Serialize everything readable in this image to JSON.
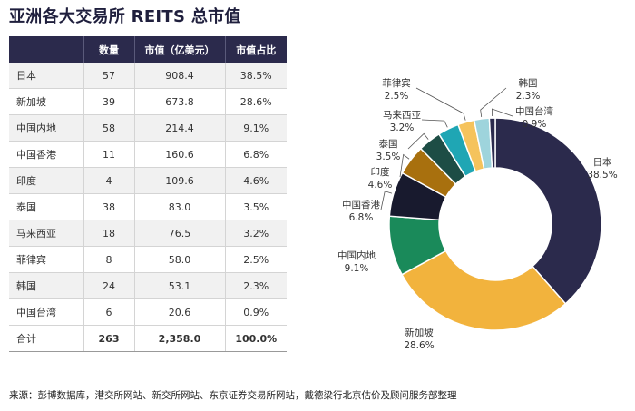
{
  "title": "亚洲各大交易所 REITS 总市值",
  "table": {
    "headers": [
      "",
      "数量",
      "市值（亿美元）",
      "市值占比"
    ],
    "rows": [
      {
        "name": "日本",
        "count": "57",
        "value": "908.4",
        "share": "38.5%"
      },
      {
        "name": "新加坡",
        "count": "39",
        "value": "673.8",
        "share": "28.6%"
      },
      {
        "name": "中国内地",
        "count": "58",
        "value": "214.4",
        "share": "9.1%"
      },
      {
        "name": "中国香港",
        "count": "11",
        "value": "160.6",
        "share": "6.8%"
      },
      {
        "name": "印度",
        "count": "4",
        "value": "109.6",
        "share": "4.6%"
      },
      {
        "name": "泰国",
        "count": "38",
        "value": "83.0",
        "share": "3.5%"
      },
      {
        "name": "马来西亚",
        "count": "18",
        "value": "76.5",
        "share": "3.2%"
      },
      {
        "name": "菲律宾",
        "count": "8",
        "value": "58.0",
        "share": "2.5%"
      },
      {
        "name": "韩国",
        "count": "24",
        "value": "53.1",
        "share": "2.3%"
      },
      {
        "name": "中国台湾",
        "count": "6",
        "value": "20.6",
        "share": "0.9%"
      }
    ],
    "total": {
      "name": "合计",
      "count": "263",
      "value": "2,358.0",
      "share": "100.0%"
    }
  },
  "source": "来源：彭博数据库，港交所网站、新交所网站、东京证券交易所网站，戴德梁行北京估价及顾问服务部整理",
  "chart_data": {
    "type": "pie",
    "donut": true,
    "labels": [
      "日本",
      "新加坡",
      "中国内地",
      "中国香港",
      "印度",
      "泰国",
      "马来西亚",
      "菲律宾",
      "韩国",
      "中国台湾"
    ],
    "values": [
      38.5,
      28.6,
      9.1,
      6.8,
      4.6,
      3.5,
      3.2,
      2.5,
      2.3,
      0.9
    ],
    "value_labels": [
      "38.5%",
      "28.6%",
      "9.1%",
      "6.8%",
      "4.6%",
      "3.5%",
      "3.2%",
      "2.5%",
      "2.3%",
      "0.9%"
    ],
    "colors": [
      "#2b2a4c",
      "#f2b33d",
      "#1a8a5a",
      "#181a2e",
      "#a8700e",
      "#1d4d45",
      "#1fa6b4",
      "#f5c35c",
      "#9ed4dc",
      "#2b2a4c"
    ]
  }
}
